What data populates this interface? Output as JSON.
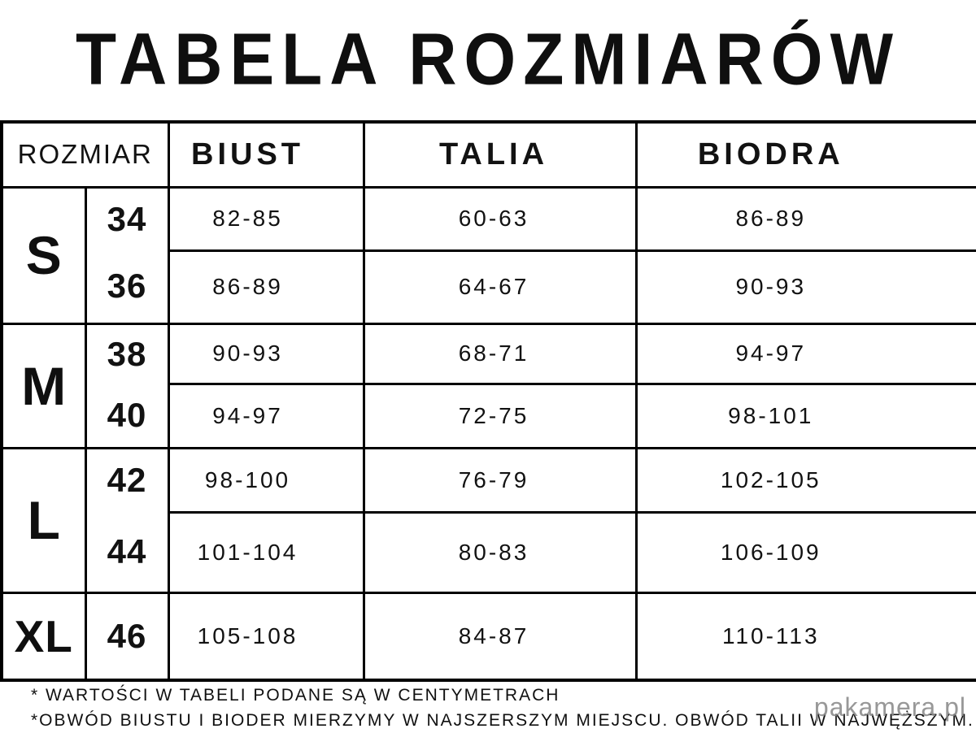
{
  "page": {
    "title": "TABELA ROZMIARÓW"
  },
  "table": {
    "headers": {
      "size": "ROZMIAR",
      "bust": "BIUST",
      "waist": "TALIA",
      "hips": "BIODRA"
    },
    "groups": [
      {
        "label": "S",
        "rows": [
          {
            "number": "34",
            "bust": "82-85",
            "waist": "60-63",
            "hips": "86-89"
          },
          {
            "number": "36",
            "bust": "86-89",
            "waist": "64-67",
            "hips": "90-93"
          }
        ]
      },
      {
        "label": "M",
        "rows": [
          {
            "number": "38",
            "bust": "90-93",
            "waist": "68-71",
            "hips": "94-97"
          },
          {
            "number": "40",
            "bust": "94-97",
            "waist": "72-75",
            "hips": "98-101"
          }
        ]
      },
      {
        "label": "L",
        "rows": [
          {
            "number": "42",
            "bust": "98-100",
            "waist": "76-79",
            "hips": "102-105"
          },
          {
            "number": "44",
            "bust": "101-104",
            "waist": "80-83",
            "hips": "106-109"
          }
        ]
      },
      {
        "label": "XL",
        "rows": [
          {
            "number": "46",
            "bust": "105-108",
            "waist": "84-87",
            "hips": "110-113"
          }
        ]
      }
    ]
  },
  "footnotes": {
    "line1": "* WARTOŚCI W TABELI PODANE SĄ W CENTYMETRACH",
    "line2": "*OBWÓD BIUSTU I BIODER MIERZYMY W NAJSZERSZYM MIEJSCU. OBWÓD TALII W NAJWĘŻSZYM."
  },
  "watermark": {
    "text": "pakamera.pl"
  },
  "colors": {
    "background": "#ffffff",
    "text": "#121212",
    "border": "#000000",
    "watermark": "#8a8a8a"
  },
  "chart_data": {
    "type": "table",
    "title": "TABELA ROZMIARÓW",
    "columns": [
      "ROZMIAR (litera)",
      "ROZMIAR (numer)",
      "BIUST",
      "TALIA",
      "BIODRA"
    ],
    "rows": [
      [
        "S",
        "34",
        "82-85",
        "60-63",
        "86-89"
      ],
      [
        "S",
        "36",
        "86-89",
        "64-67",
        "90-93"
      ],
      [
        "M",
        "38",
        "90-93",
        "68-71",
        "94-97"
      ],
      [
        "M",
        "40",
        "94-97",
        "72-75",
        "98-101"
      ],
      [
        "L",
        "42",
        "98-100",
        "76-79",
        "102-105"
      ],
      [
        "L",
        "44",
        "101-104",
        "80-83",
        "106-109"
      ],
      [
        "XL",
        "46",
        "105-108",
        "84-87",
        "110-113"
      ]
    ],
    "units": "cm"
  }
}
